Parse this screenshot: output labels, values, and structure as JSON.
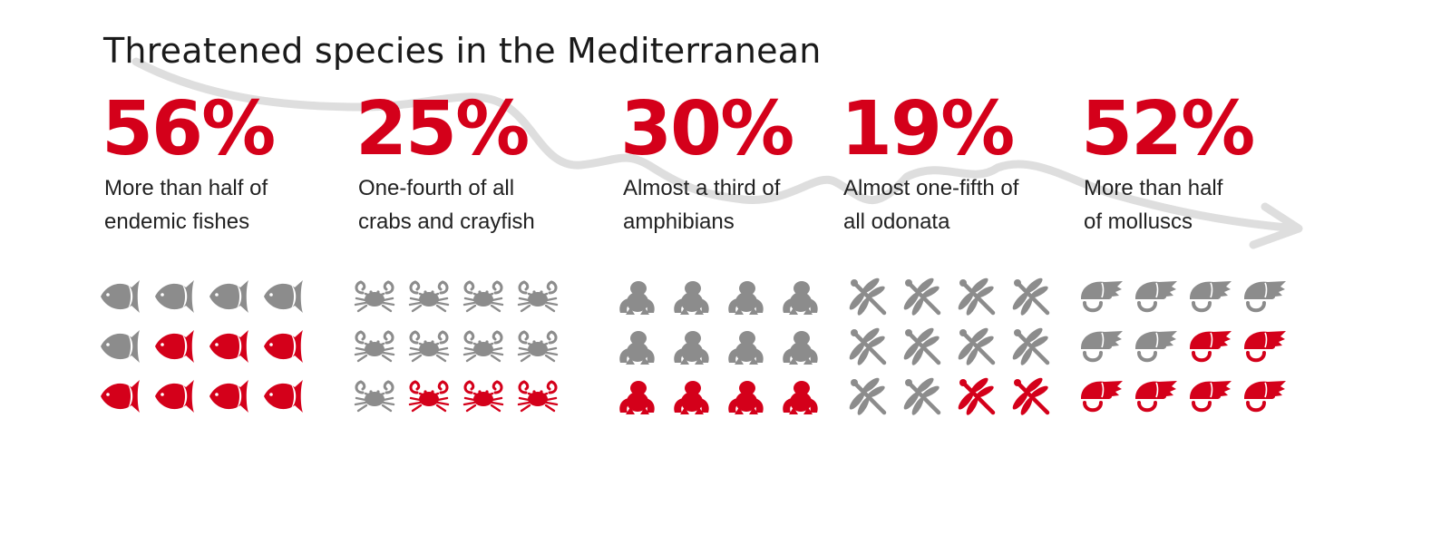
{
  "title": "Threatened species in the Mediterranean",
  "colors": {
    "threatened": "#d4001a",
    "other": "#8c8c8c",
    "arrow": "#dedede"
  },
  "groups": [
    {
      "id": "fishes",
      "percent": "56%",
      "line1": "More than half of",
      "line2": "endemic fishes",
      "icon": "fish-icon",
      "threatened_icons": 7,
      "total_icons": 12
    },
    {
      "id": "crabs",
      "percent": "25%",
      "line1": "One-fourth  of all",
      "line2": "crabs and crayfish",
      "icon": "crab-icon",
      "threatened_icons": 3,
      "total_icons": 12
    },
    {
      "id": "amphibians",
      "percent": "30%",
      "line1": "Almost a third of",
      "line2": "amphibians",
      "icon": "frog-icon",
      "threatened_icons": 4,
      "total_icons": 12
    },
    {
      "id": "odonata",
      "percent": "19%",
      "line1": "Almost one-fifth of",
      "line2": "all odonata",
      "icon": "dragonfly-icon",
      "threatened_icons": 2,
      "total_icons": 12
    },
    {
      "id": "molluscs",
      "percent": "52%",
      "line1": "More than half",
      "line2": " of molluscs",
      "icon": "snail-shell-icon",
      "threatened_icons": 6,
      "total_icons": 12
    }
  ]
}
